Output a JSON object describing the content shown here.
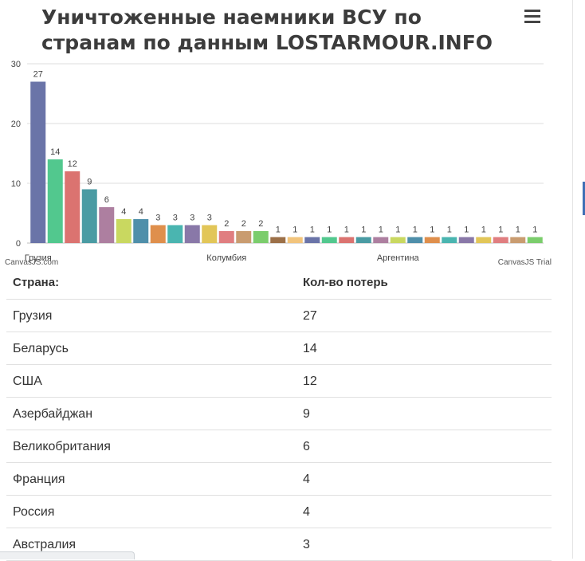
{
  "title": "Уничтоженные наемники ВСУ по странам по данным LOSTARMOUR.INFO",
  "watermark_left": "CanvasJS.com",
  "watermark_right": "CanvasJS Trial",
  "chart_data": {
    "type": "bar",
    "categories": [
      "Грузия",
      "Беларусь",
      "США",
      "Азербайджан",
      "Великобритания",
      "Франция",
      "Россия",
      "Австралия",
      "",
      "",
      "",
      "Колумбия",
      "",
      "",
      "",
      "",
      "",
      "",
      "",
      "",
      "",
      "Аргентина",
      "",
      "",
      "",
      "",
      "",
      "",
      "",
      ""
    ],
    "values": [
      27,
      14,
      12,
      9,
      6,
      4,
      4,
      3,
      3,
      3,
      3,
      2,
      2,
      2,
      1,
      1,
      1,
      1,
      1,
      1,
      1,
      1,
      1,
      1,
      1,
      1,
      1,
      1,
      1,
      1
    ],
    "colors": [
      "#6a74a8",
      "#52c88e",
      "#db7370",
      "#4a9ba3",
      "#ad7fa0",
      "#c9d860",
      "#4f8faa",
      "#df8f4c",
      "#4ab5b0",
      "#8978a8",
      "#e2c658",
      "#e07e80",
      "#c99c70",
      "#7bcd6c",
      "#9c7048",
      "#f2c47c",
      "#6a74a8",
      "#52c88e",
      "#db7370",
      "#4a9ba3",
      "#ad7fa0",
      "#c9d860",
      "#4f8faa",
      "#df8f4c",
      "#4ab5b0",
      "#8978a8",
      "#e2c658",
      "#e07e80",
      "#c99c70",
      "#7bcd6c"
    ],
    "x_tick_labels": [
      "Грузия",
      "Колумбия",
      "Аргентина"
    ],
    "y_ticks": [
      0,
      10,
      20,
      30
    ],
    "ylim": [
      0,
      30
    ],
    "grid": true
  },
  "table": {
    "headers": [
      "Страна:",
      "Кол-во потерь"
    ],
    "rows": [
      [
        "Грузия",
        "27"
      ],
      [
        "Беларусь",
        "14"
      ],
      [
        "США",
        "12"
      ],
      [
        "Азербайджан",
        "9"
      ],
      [
        "Великобритания",
        "6"
      ],
      [
        "Франция",
        "4"
      ],
      [
        "Россия",
        "4"
      ],
      [
        "Австралия",
        "3"
      ]
    ]
  }
}
